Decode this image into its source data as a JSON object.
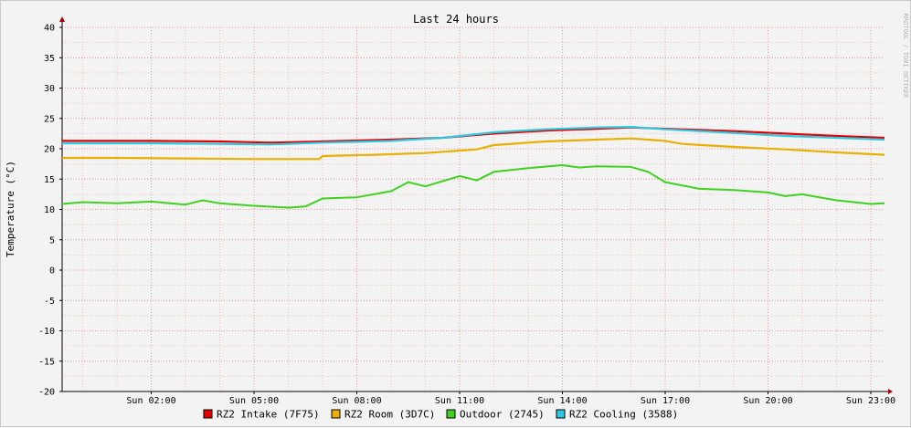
{
  "chart_data": {
    "type": "line",
    "title": "Last 24 hours",
    "ylabel": "Temperature (°C)",
    "xlabel": "",
    "watermark": "RRDTOOL / TOBI OETIKER",
    "ylim": [
      -20,
      40
    ],
    "y_ticks": [
      40,
      35,
      30,
      25,
      20,
      15,
      10,
      5,
      0,
      -5,
      -10,
      -15,
      -20
    ],
    "y_tick_labels": [
      "40",
      "35",
      "30",
      "25",
      "20",
      "15",
      "10",
      "5",
      "0",
      "-5",
      "-10",
      "-15",
      "-20"
    ],
    "x_range_hours": [
      23.4,
      47.4
    ],
    "x_ticks": [
      {
        "hour": 26,
        "label": "Sun 02:00"
      },
      {
        "hour": 29,
        "label": "Sun 05:00"
      },
      {
        "hour": 32,
        "label": "Sun 08:00"
      },
      {
        "hour": 35,
        "label": "Sun 11:00"
      },
      {
        "hour": 38,
        "label": "Sun 14:00"
      },
      {
        "hour": 41,
        "label": "Sun 17:00"
      },
      {
        "hour": 44,
        "label": "Sun 20:00"
      },
      {
        "hour": 47,
        "label": "Sun 23:00"
      }
    ],
    "grid": true,
    "legend_position": "bottom",
    "series": [
      {
        "name": "RZ2 Intake (7F75)",
        "color": "#e00000",
        "x": [
          23.4,
          26,
          28,
          29.5,
          31,
          33,
          34.5,
          36,
          37.5,
          39,
          40,
          41,
          43,
          44.5,
          46,
          47.4
        ],
        "values": [
          21.3,
          21.3,
          21.2,
          21.0,
          21.2,
          21.5,
          21.8,
          22.5,
          23.0,
          23.3,
          23.5,
          23.3,
          22.9,
          22.5,
          22.1,
          21.8
        ]
      },
      {
        "name": "RZ2 Room (3D7C)",
        "color": "#e8b000",
        "x": [
          23.4,
          25,
          27,
          29,
          30.9,
          31,
          32.5,
          34,
          35.5,
          36,
          37.5,
          39,
          40,
          41,
          41.5,
          43,
          44.5,
          46,
          47.4
        ],
        "values": [
          18.5,
          18.5,
          18.4,
          18.3,
          18.3,
          18.8,
          19.0,
          19.3,
          19.9,
          20.6,
          21.2,
          21.5,
          21.7,
          21.3,
          20.8,
          20.3,
          19.9,
          19.4,
          19.0
        ]
      },
      {
        "name": "Outdoor (2745)",
        "color": "#40d020",
        "x": [
          23.4,
          24,
          25,
          26,
          27,
          27.5,
          28,
          29,
          30,
          30.5,
          31,
          32,
          33,
          33.5,
          34,
          35,
          35.5,
          36,
          37,
          38,
          38.5,
          39,
          40,
          40.5,
          41,
          42,
          43,
          44,
          44.5,
          45,
          46,
          47,
          47.4
        ],
        "values": [
          10.9,
          11.2,
          11.0,
          11.3,
          10.8,
          11.5,
          11.0,
          10.6,
          10.3,
          10.5,
          11.8,
          12.0,
          13.0,
          14.5,
          13.8,
          15.5,
          14.8,
          16.2,
          16.8,
          17.3,
          16.9,
          17.1,
          17.0,
          16.2,
          14.5,
          13.4,
          13.2,
          12.8,
          12.2,
          12.5,
          11.5,
          10.9,
          11.0
        ]
      },
      {
        "name": "RZ2 Cooling (3588)",
        "color": "#30c8e0",
        "x": [
          23.4,
          26,
          28,
          29.5,
          31,
          33,
          34.5,
          36,
          37.5,
          39,
          40,
          41,
          43,
          44.5,
          46,
          47.4
        ],
        "values": [
          20.9,
          20.9,
          20.8,
          20.7,
          21.0,
          21.3,
          21.8,
          22.7,
          23.2,
          23.5,
          23.6,
          23.2,
          22.6,
          22.1,
          21.8,
          21.5
        ]
      }
    ]
  }
}
